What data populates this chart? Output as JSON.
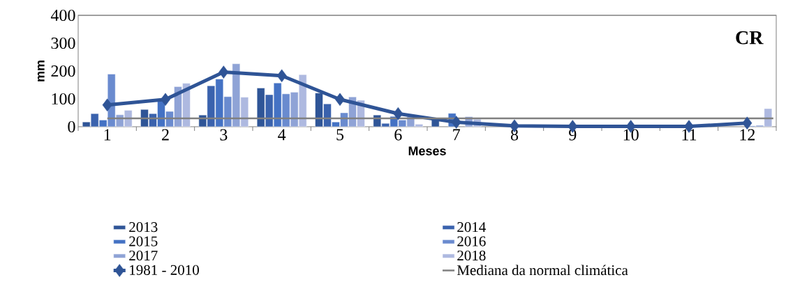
{
  "chart_data": {
    "type": "bar",
    "xlabel": "Meses",
    "ylabel": "mm",
    "annotations": [
      "CR"
    ],
    "categories": [
      "1",
      "2",
      "3",
      "4",
      "5",
      "6",
      "7",
      "8",
      "9",
      "10",
      "11",
      "12"
    ],
    "series": [
      {
        "name": "2013",
        "color": "#2f5597",
        "values": [
          17,
          62,
          42,
          139,
          121,
          42,
          29,
          null,
          null,
          null,
          null,
          null
        ]
      },
      {
        "name": "2014",
        "color": "#3a62ad",
        "values": [
          47,
          47,
          147,
          115,
          82,
          12,
          null,
          null,
          null,
          null,
          null,
          null
        ]
      },
      {
        "name": "2015",
        "color": "#4472c4",
        "values": [
          24,
          95,
          171,
          157,
          17,
          37,
          48,
          null,
          null,
          null,
          null,
          null
        ]
      },
      {
        "name": "2016",
        "color": "#6a8bcf",
        "values": [
          189,
          55,
          108,
          118,
          50,
          24,
          null,
          null,
          null,
          null,
          null,
          3
        ]
      },
      {
        "name": "2017",
        "color": "#8fa3d6",
        "values": [
          43,
          144,
          226,
          124,
          107,
          37,
          36,
          null,
          null,
          null,
          null,
          5
        ]
      },
      {
        "name": "2018",
        "color": "#aeb9e0",
        "values": [
          59,
          156,
          106,
          187,
          95,
          9,
          27,
          null,
          null,
          null,
          null,
          65
        ]
      },
      {
        "name": "1981 - 2010",
        "type": "line",
        "marker": "diamond",
        "color": "#2f5496",
        "values": [
          78,
          98,
          196,
          183,
          98,
          47,
          16,
          3,
          1,
          1,
          1,
          13
        ]
      }
    ],
    "ref_lines": [
      {
        "axis": "y",
        "value": 30,
        "label": "Mediana da normal climática",
        "color": "#808080"
      }
    ],
    "ylim": [
      0,
      400
    ],
    "yticks": [
      0,
      100,
      200,
      300,
      400
    ],
    "grid": false,
    "legend": "bottom"
  }
}
